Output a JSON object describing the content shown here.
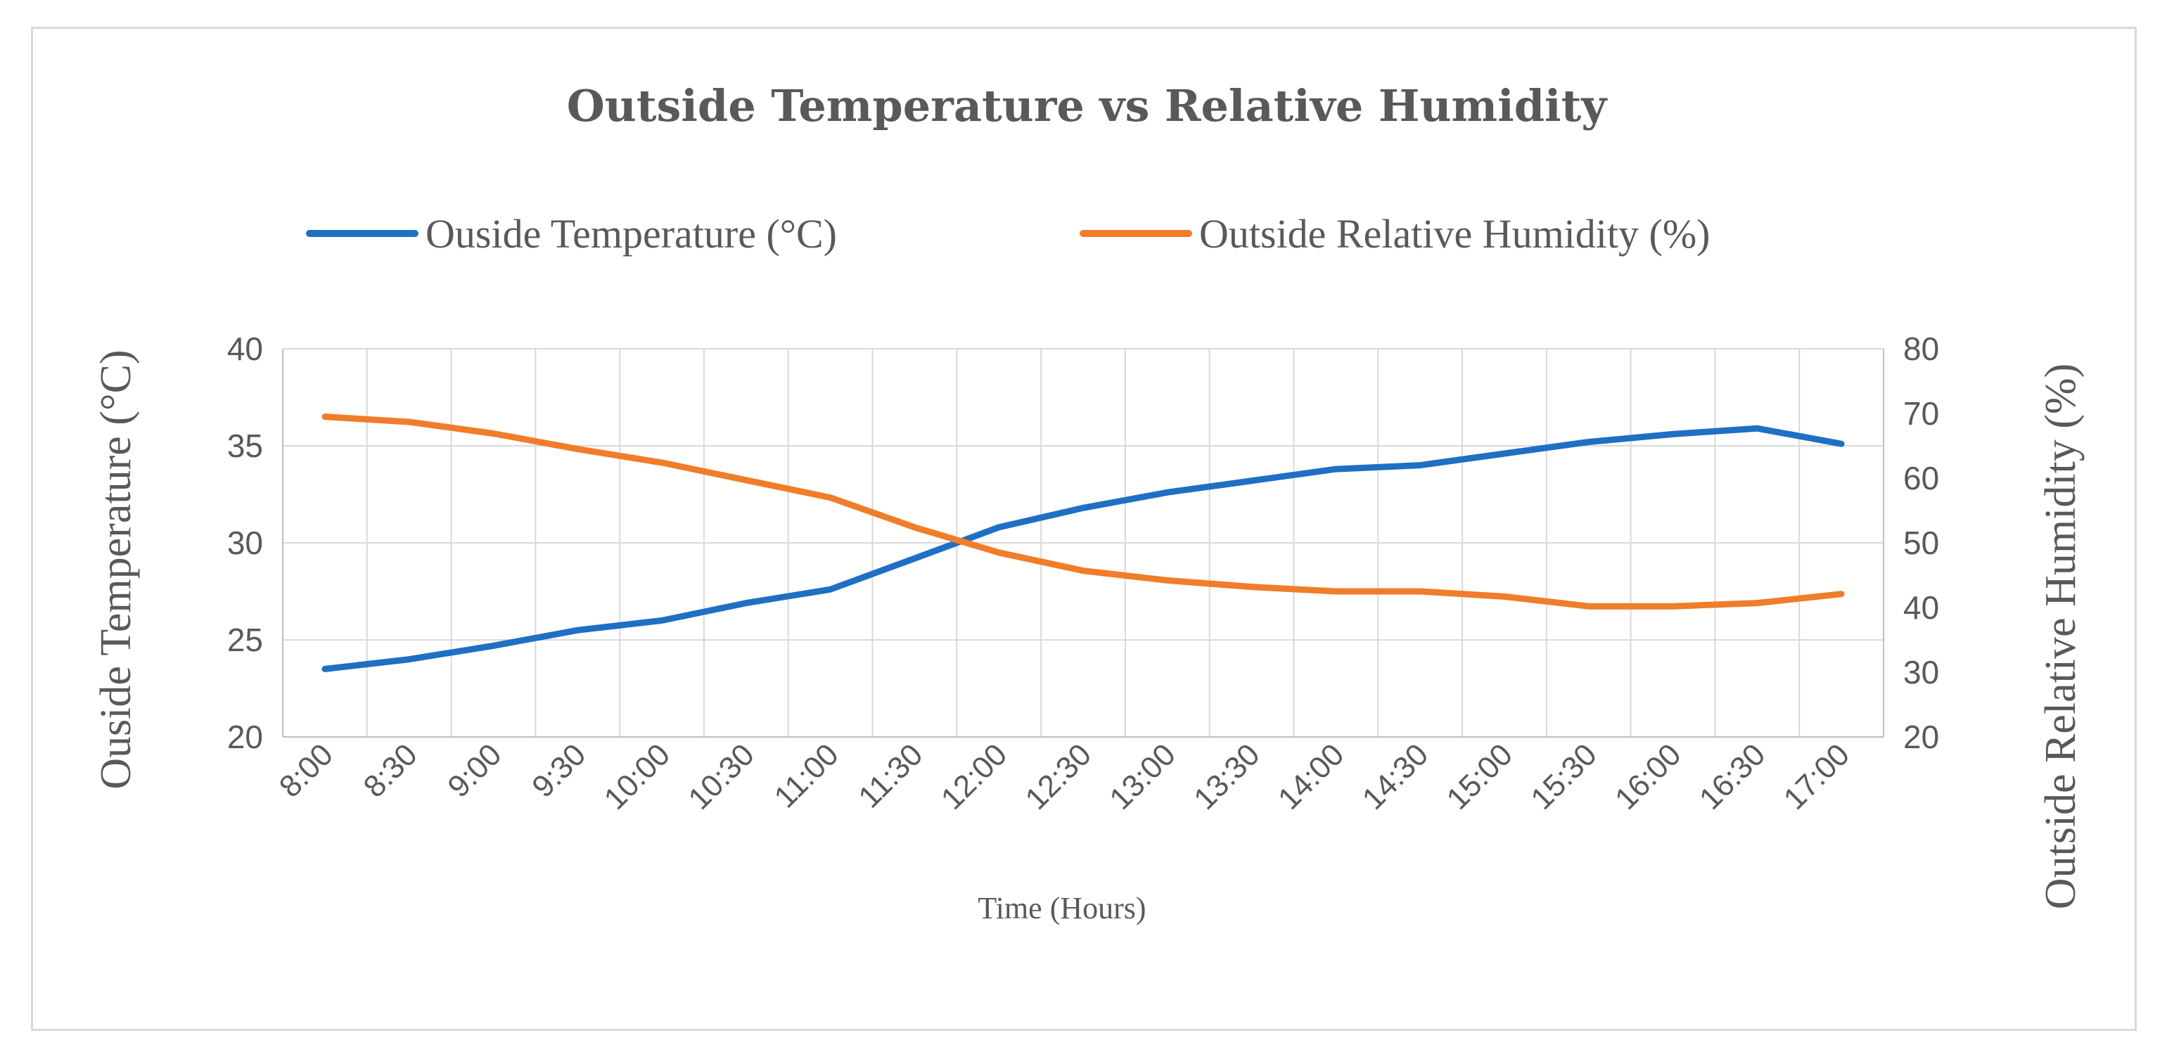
{
  "chart_data": {
    "type": "line",
    "title": "Outside Temperature vs Relative Humidity",
    "xlabel": "Time (Hours)",
    "ylabel": "Ouside Temperature (°C)",
    "y2label": "Outside Relative Humidity (%)",
    "ylim": [
      20,
      40
    ],
    "y2lim": [
      20,
      80
    ],
    "yticks": [
      "20",
      "25",
      "30",
      "35",
      "40"
    ],
    "y2ticks": [
      "20",
      "30",
      "40",
      "50",
      "60",
      "70",
      "80"
    ],
    "categories": [
      "8:00",
      "8:30",
      "9:00",
      "9:30",
      "10:00",
      "10:30",
      "11:00",
      "11:30",
      "12:00",
      "12:30",
      "13:00",
      "13:30",
      "14:00",
      "14:30",
      "15:00",
      "15:30",
      "16:00",
      "16:30",
      "17:00"
    ],
    "x_points": [
      8.0,
      8.5,
      9.0,
      9.5,
      10.0,
      10.5,
      11.0,
      11.5,
      12.0,
      12.5,
      13.0,
      13.5,
      14.0,
      14.5,
      15.0,
      15.5,
      16.0,
      16.5,
      17.0
    ],
    "series": [
      {
        "name": "Ouside Temperature (°C)",
        "axis": "left",
        "color": "#1f6fc5",
        "values": [
          23.5,
          24.0,
          24.7,
          25.5,
          26.0,
          26.9,
          27.6,
          29.2,
          30.8,
          31.8,
          32.6,
          33.2,
          33.8,
          34.0,
          34.6,
          35.2,
          35.6,
          35.9,
          35.1
        ]
      },
      {
        "name": "Outside Relative Humidity (%)",
        "axis": "right",
        "color": "#f07d2a",
        "values": [
          69.5,
          68.7,
          66.9,
          64.5,
          62.4,
          59.7,
          57.0,
          52.4,
          48.5,
          45.7,
          44.2,
          43.2,
          42.5,
          42.5,
          41.7,
          40.2,
          40.2,
          40.7,
          42.1
        ]
      }
    ],
    "legend_position": "top",
    "grid": true
  }
}
